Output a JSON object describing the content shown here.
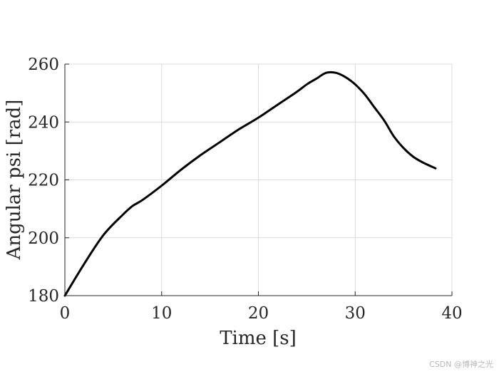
{
  "chart_data": {
    "type": "line",
    "title": "",
    "xlabel": "Time [s]",
    "ylabel": "Angular psi [rad]",
    "xlim": [
      0,
      40
    ],
    "ylim": [
      180,
      260
    ],
    "xticks": [
      0,
      10,
      20,
      30,
      40
    ],
    "yticks": [
      180,
      200,
      220,
      240,
      260
    ],
    "grid": true,
    "series": [
      {
        "color": "#000000",
        "x": [
          0,
          2,
          4,
          6,
          7,
          8,
          10,
          12,
          14,
          16,
          18,
          20,
          22,
          24,
          25,
          26,
          27,
          28,
          29,
          30,
          31,
          32,
          33,
          34,
          35,
          36,
          37,
          38.3
        ],
        "y": [
          180,
          191,
          201,
          208,
          211,
          213,
          218,
          223.5,
          228.5,
          233,
          237.5,
          241.5,
          246,
          250.5,
          253,
          255,
          257,
          257,
          255.5,
          253,
          249.5,
          245,
          240.5,
          235,
          231,
          228,
          226,
          224
        ]
      }
    ]
  },
  "watermark": "CSDN @博神之光",
  "colors": {
    "line": "#000000",
    "grid": "#dcdcdc",
    "axis": "#262626"
  }
}
